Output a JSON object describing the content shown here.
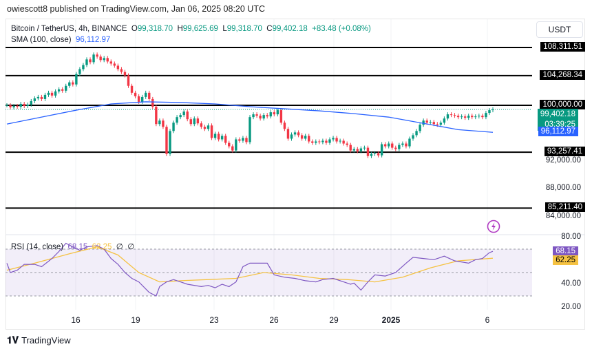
{
  "header": {
    "published": "owiescott8 published on TradingView.com, Jan 06, 2025 08:20 UTC"
  },
  "legend": {
    "symbol": "Bitcoin / TetherUS, 4h, BINANCE",
    "o_label": "O",
    "o": "99,318.70",
    "h_label": "H",
    "h": "99,625.69",
    "l_label": "L",
    "l": "99,318.70",
    "c_label": "C",
    "c": "99,402.18",
    "change": "+83.48 (+0.08%)",
    "sma_label": "SMA (100, close)",
    "sma_value": "96,112.97"
  },
  "currency": "USDT",
  "rsi_legend": {
    "label": "RSI (14, close)",
    "rsi": "68.15",
    "ma": "62.25",
    "z1": "∅",
    "z2": "∅"
  },
  "footer": {
    "brand": "TradingView"
  },
  "icons": {
    "alert": "lightning-icon",
    "logo": "tradingview-logo-icon"
  },
  "colors": {
    "up": "#089981",
    "down": "#f23645",
    "sma": "#2962ff",
    "rsi": "#7e57c2",
    "rsi_ma": "#f5c242",
    "levels": "#000000"
  },
  "chart_data": [
    {
      "type": "candlestick",
      "title": "Bitcoin / TetherUS, 4h, BINANCE",
      "ylim": [
        80000,
        110000
      ],
      "y_ticks": [
        "92,000.00",
        "88,000.00",
        "84,000.00"
      ],
      "x_ticks": [
        "16",
        "19",
        "23",
        "26",
        "29",
        "2025",
        "6"
      ],
      "levels": [
        {
          "value": 108311.51,
          "label": "108,311.51"
        },
        {
          "value": 104268.34,
          "label": "104,268.34"
        },
        {
          "value": 100000,
          "label": "100,000.00"
        },
        {
          "value": 93257.41,
          "label": "93,257.41"
        },
        {
          "value": 85211.4,
          "label": "85,211.40"
        }
      ],
      "last_price": {
        "value": 99402.18,
        "label": "99,402.18",
        "countdown": "03:39:25"
      },
      "sma": {
        "name": "SMA (100, close)",
        "label": "96,112.97",
        "points": [
          [
            0,
            97300
          ],
          [
            10,
            98300
          ],
          [
            20,
            99300
          ],
          [
            30,
            100200
          ],
          [
            40,
            100500
          ],
          [
            50,
            100400
          ],
          [
            60,
            100200
          ],
          [
            70,
            99800
          ],
          [
            80,
            99500
          ],
          [
            90,
            99200
          ],
          [
            100,
            98800
          ],
          [
            110,
            98300
          ],
          [
            120,
            97400
          ],
          [
            130,
            96500
          ],
          [
            140,
            96113
          ]
        ]
      },
      "closes": [
        100000,
        99700,
        99900,
        99800,
        100200,
        99900,
        100100,
        100600,
        101000,
        101200,
        100900,
        101500,
        101800,
        101400,
        102000,
        102300,
        102100,
        102800,
        103300,
        103000,
        104500,
        105200,
        105800,
        106600,
        106200,
        107300,
        107000,
        106500,
        106800,
        106300,
        106000,
        105700,
        105200,
        104800,
        104300,
        102800,
        101800,
        101300,
        100500,
        101200,
        101800,
        100900,
        99800,
        97300,
        97800,
        96900,
        93000,
        96300,
        97500,
        98300,
        98600,
        99100,
        98000,
        97300,
        98100,
        97400,
        96900,
        96600,
        97100,
        95300,
        95900,
        95100,
        95600,
        94600,
        94100,
        93500,
        95100,
        94900,
        95300,
        94700,
        98300,
        98700,
        98500,
        98100,
        98600,
        98400,
        99000,
        98700,
        99300,
        97500,
        96600,
        95200,
        95800,
        96100,
        95700,
        95200,
        95600,
        94800,
        94600,
        94800,
        94700,
        94900,
        94600,
        95100,
        95300,
        94800,
        94900,
        94500,
        94300,
        93500,
        93700,
        93400,
        93800,
        93900,
        92700,
        93000,
        93100,
        92800,
        94400,
        94100,
        94500,
        93900,
        93700,
        94300,
        94500,
        94100,
        95200,
        95700,
        96300,
        97200,
        97800,
        97500,
        97600,
        97300,
        97200,
        97500,
        98100,
        98700,
        98600,
        98500,
        98300,
        98400,
        98200,
        98500,
        98300,
        98400,
        98500,
        98300,
        98900,
        99300,
        99402.18
      ]
    },
    {
      "type": "line",
      "title": "RSI (14, close)",
      "ylim": [
        20,
        80
      ],
      "y_ticks": [
        "80.00",
        "40.00",
        "20.00"
      ],
      "band": [
        30,
        70
      ],
      "series": [
        {
          "name": "RSI",
          "label": "68.15",
          "points": [
            [
              0,
              58
            ],
            [
              1,
              50
            ],
            [
              3,
              52
            ],
            [
              5,
              57
            ],
            [
              8,
              57
            ],
            [
              10,
              55
            ],
            [
              13,
              62
            ],
            [
              15,
              68
            ],
            [
              17,
              75
            ],
            [
              21,
              69
            ],
            [
              23,
              72
            ],
            [
              26,
              73
            ],
            [
              28,
              70
            ],
            [
              30,
              62
            ],
            [
              32,
              57
            ],
            [
              34,
              50
            ],
            [
              36,
              45
            ],
            [
              38,
              42
            ],
            [
              40,
              36
            ],
            [
              41,
              33
            ],
            [
              43,
              30
            ],
            [
              44,
              38
            ],
            [
              46,
              42
            ],
            [
              48,
              44
            ],
            [
              50,
              42
            ],
            [
              52,
              40
            ],
            [
              56,
              38
            ],
            [
              58,
              39
            ],
            [
              60,
              37
            ],
            [
              62,
              40
            ],
            [
              64,
              38
            ],
            [
              66,
              42
            ],
            [
              68,
              55
            ],
            [
              70,
              58
            ],
            [
              72,
              58
            ],
            [
              75,
              58
            ],
            [
              77,
              48
            ],
            [
              80,
              46
            ],
            [
              83,
              45
            ],
            [
              86,
              43
            ],
            [
              89,
              42
            ],
            [
              91,
              44
            ],
            [
              94,
              45
            ],
            [
              97,
              42
            ],
            [
              99,
              40
            ],
            [
              100,
              41
            ],
            [
              102,
              35
            ],
            [
              104,
              42
            ],
            [
              106,
              48
            ],
            [
              109,
              47
            ],
            [
              112,
              50
            ],
            [
              115,
              58
            ],
            [
              117,
              63
            ],
            [
              120,
              62
            ],
            [
              123,
              61
            ],
            [
              126,
              64
            ],
            [
              129,
              60
            ],
            [
              133,
              58
            ],
            [
              135,
              61
            ],
            [
              137,
              62
            ],
            [
              139,
              67
            ],
            [
              140,
              68.15
            ]
          ]
        },
        {
          "name": "RSI MA",
          "label": "62.25",
          "points": [
            [
              0,
              52
            ],
            [
              8,
              58
            ],
            [
              18,
              66
            ],
            [
              26,
              72
            ],
            [
              32,
              65
            ],
            [
              38,
              50
            ],
            [
              44,
              42
            ],
            [
              50,
              43
            ],
            [
              58,
              44
            ],
            [
              66,
              45
            ],
            [
              74,
              50
            ],
            [
              82,
              48
            ],
            [
              90,
              45
            ],
            [
              98,
              44
            ],
            [
              106,
              42
            ],
            [
              114,
              46
            ],
            [
              122,
              54
            ],
            [
              130,
              60
            ],
            [
              140,
              62.25
            ]
          ]
        }
      ]
    }
  ]
}
